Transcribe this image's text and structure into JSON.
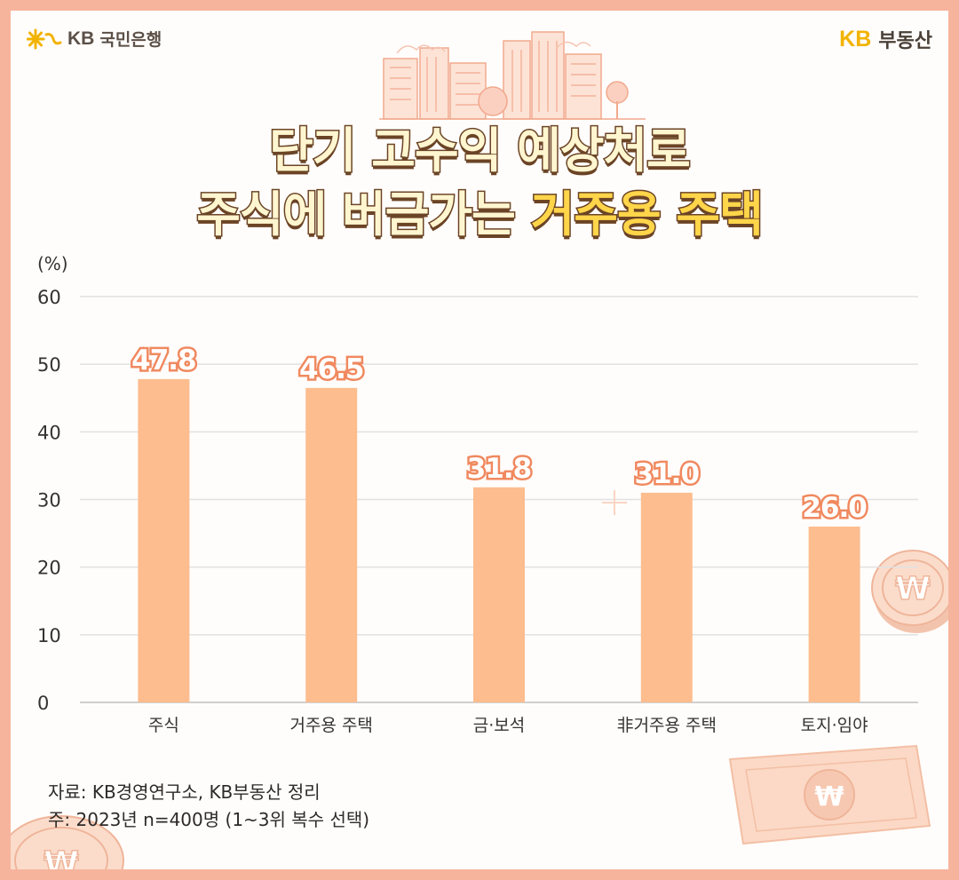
{
  "brand": {
    "bank_logo": "KB",
    "bank_name": "국민은행",
    "realty_logo": "KB",
    "realty_name": "부동산"
  },
  "title": {
    "line1": "단기 고수익 예상처로",
    "line2_prefix": "주식에 버금가는",
    "line2_highlight": "거주용 주택"
  },
  "chart_data": {
    "type": "bar",
    "ylabel": "(%)",
    "ylim": [
      0,
      60
    ],
    "yticks": [
      0,
      10,
      20,
      30,
      40,
      50,
      60
    ],
    "categories": [
      "주식",
      "거주용 주택",
      "금·보석",
      "非거주용 주택",
      "토지·임야"
    ],
    "values": [
      47.8,
      46.5,
      31.8,
      31.0,
      26.0
    ],
    "value_labels": [
      "47.8",
      "46.5",
      "31.8",
      "31.0",
      "26.0"
    ],
    "grid": true,
    "bar_color": "#fdbd8f",
    "label_color": "#f0895f"
  },
  "source": {
    "line1": "자료: KB경영연구소, KB부동산 정리",
    "line2": "주: 2023년 n=400명 (1~3위 복수 선택)"
  },
  "colors": {
    "frame": "#f6b49c",
    "title_fill": "#fff6d0",
    "title_highlight": "#ffd54a",
    "title_outline": "#6b4426",
    "brand_yellow": "#f2b300"
  },
  "icons": [
    "kb-star-logo-icon",
    "skyline-illustration",
    "won-coin-icon",
    "won-banknote-icon",
    "sparkle-icon"
  ]
}
